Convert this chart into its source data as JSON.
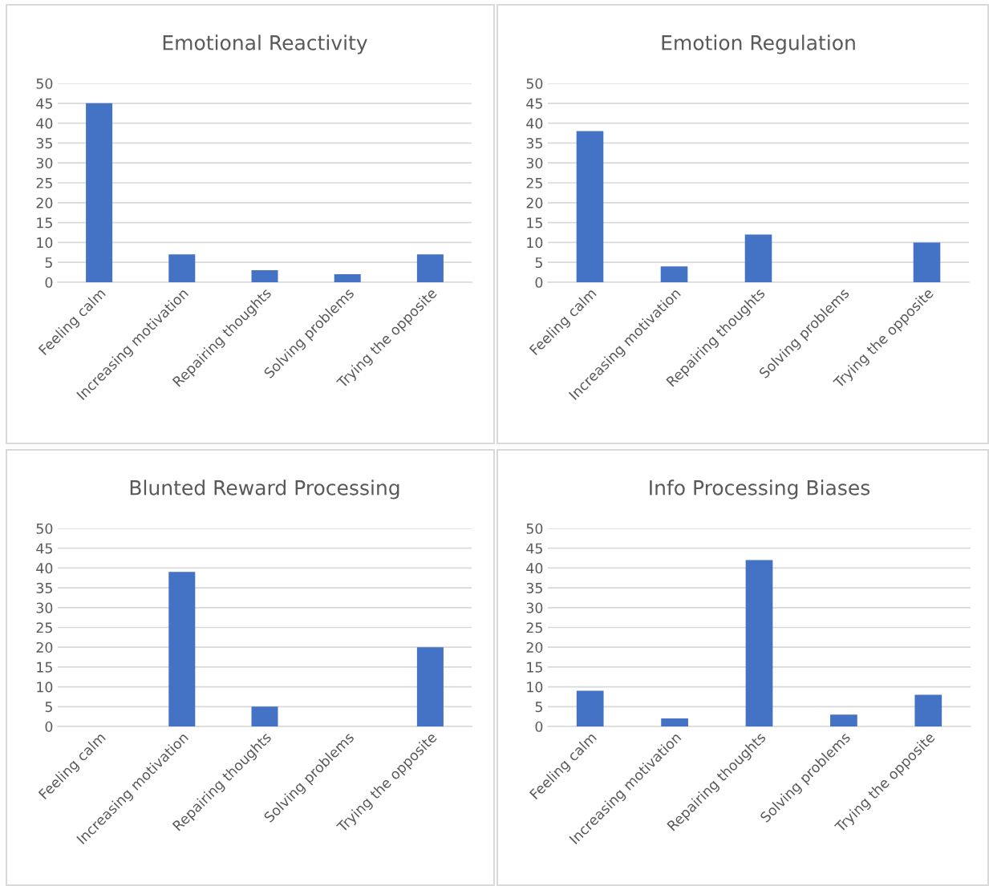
{
  "chart_data": [
    {
      "type": "bar",
      "title": "Emotional Reactivity",
      "categories": [
        "Feeling calm",
        "Increasing motivation",
        "Repairing thoughts",
        "Solving problems",
        "Trying the opposite"
      ],
      "values": [
        45,
        7,
        3,
        2,
        7
      ],
      "color": "#4472c4",
      "ylim": [
        0,
        50
      ],
      "yticks": [
        0,
        5,
        10,
        15,
        20,
        25,
        30,
        35,
        40,
        45,
        50
      ],
      "grid": "y"
    },
    {
      "type": "bar",
      "title": "Emotion Regulation",
      "categories": [
        "Feeling calm",
        "Increasing motivation",
        "Repairing thoughts",
        "Solving problems",
        "Trying the opposite"
      ],
      "values": [
        38,
        4,
        12,
        0,
        10
      ],
      "color": "#4472c4",
      "ylim": [
        0,
        50
      ],
      "yticks": [
        0,
        5,
        10,
        15,
        20,
        25,
        30,
        35,
        40,
        45,
        50
      ],
      "grid": "y"
    },
    {
      "type": "bar",
      "title": "Blunted Reward Processing",
      "categories": [
        "Feeling calm",
        "Increasing motivation",
        "Repairing thoughts",
        "Solving problems",
        "Trying the opposite"
      ],
      "values": [
        0,
        39,
        5,
        0,
        20
      ],
      "color": "#4472c4",
      "ylim": [
        0,
        50
      ],
      "yticks": [
        0,
        5,
        10,
        15,
        20,
        25,
        30,
        35,
        40,
        45,
        50
      ],
      "grid": "y"
    },
    {
      "type": "bar",
      "title": "Info Processing Biases",
      "categories": [
        "Feeling calm",
        "Increasing motivation",
        "Repairing thoughts",
        "Solving problems",
        "Trying the opposite"
      ],
      "values": [
        9,
        2,
        42,
        3,
        8
      ],
      "color": "#4472c4",
      "ylim": [
        0,
        50
      ],
      "yticks": [
        0,
        5,
        10,
        15,
        20,
        25,
        30,
        35,
        40,
        45,
        50
      ],
      "grid": "y"
    }
  ]
}
